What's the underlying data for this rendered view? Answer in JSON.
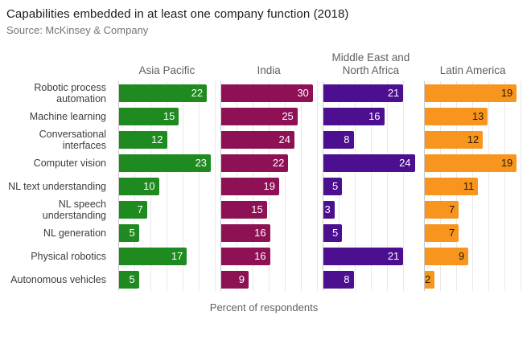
{
  "title": "Capabilities embedded in at least one company function (2018)",
  "source": "Source: McKinsey & Company",
  "xlabel": "Percent of respondents",
  "chart_data": {
    "type": "bar",
    "orientation": "horizontal",
    "title": "Capabilities embedded in at least one company function (2018)",
    "subtitle": "Source: McKinsey & Company",
    "xlabel": "Percent of respondents",
    "ylabel": "",
    "grid": true,
    "value_labels": "inside-right",
    "facet_layout": "four-panels-shared-categories-free-x",
    "categories": [
      "Robotic process automation",
      "Machine learning",
      "Conversational interfaces",
      "Computer vision",
      "NL text understanding",
      "NL speech understanding",
      "NL generation",
      "Physical robotics",
      "Autonomous vehicles"
    ],
    "series": [
      {
        "name": "Asia Pacific",
        "color": "#1f8a1f",
        "label_color": "#ffffff",
        "values": [
          22,
          15,
          12,
          23,
          10,
          7,
          5,
          17,
          5
        ]
      },
      {
        "name": "India",
        "color": "#8e1155",
        "label_color": "#ffffff",
        "values": [
          30,
          25,
          24,
          22,
          19,
          15,
          16,
          16,
          9
        ]
      },
      {
        "name": "Middle East and North Africa",
        "color": "#4b0f90",
        "label_color": "#ffffff",
        "values": [
          21,
          16,
          8,
          24,
          5,
          3,
          5,
          21,
          8
        ]
      },
      {
        "name": "Latin America",
        "color": "#f8951e",
        "label_color": "#2b1a00",
        "values": [
          19,
          13,
          12,
          19,
          11,
          7,
          7,
          9,
          2
        ]
      }
    ]
  }
}
